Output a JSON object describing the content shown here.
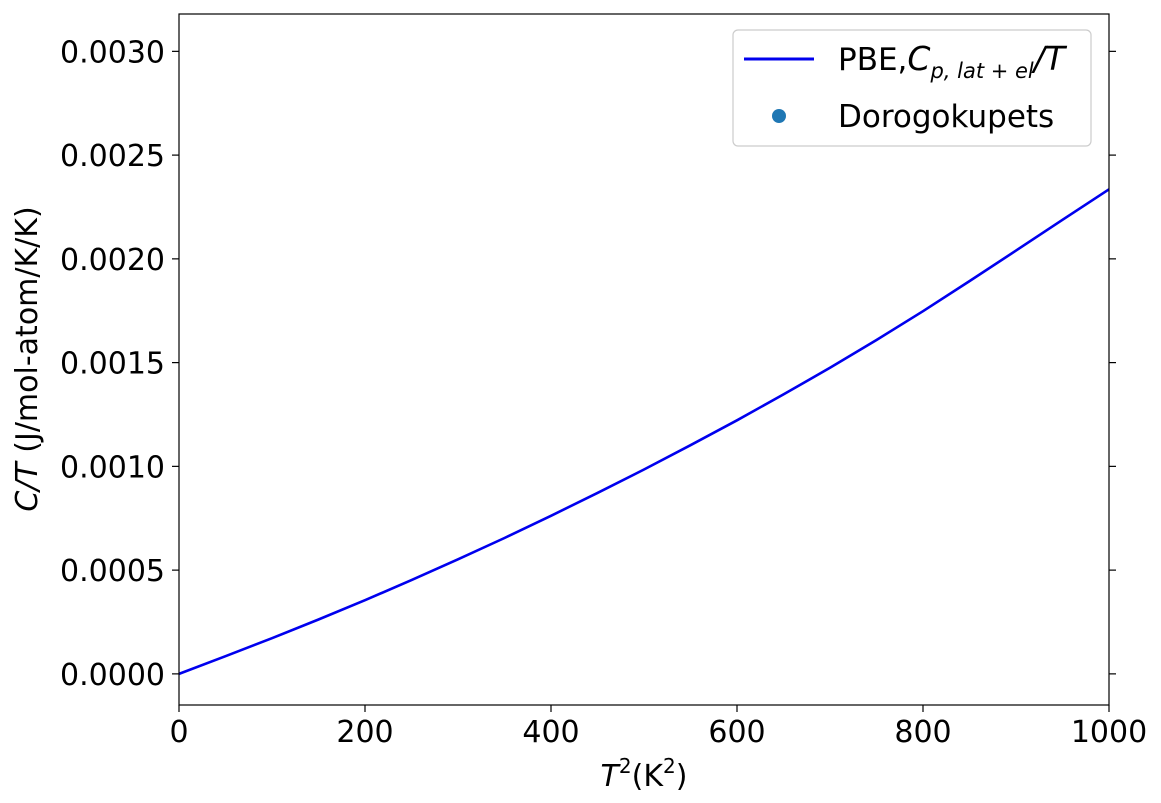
{
  "chart_data": {
    "type": "line",
    "xlabel": {
      "base": "T",
      "sup1": "2",
      "mid": "(K",
      "sup2": "2",
      "end": ")"
    },
    "ylabel": {
      "italic": "C/T",
      "rest": " (J/mol-atom/K/K)"
    },
    "xlim": [
      0,
      1000
    ],
    "ylim": [
      -0.00015,
      0.00318
    ],
    "xticks": [
      0,
      200,
      400,
      600,
      800,
      1000
    ],
    "xtick_labels": [
      "0",
      "200",
      "400",
      "600",
      "800",
      "1000"
    ],
    "yticks": [
      0.0,
      0.0005,
      0.001,
      0.0015,
      0.002,
      0.0025,
      0.003
    ],
    "ytick_labels": [
      "0.0000",
      "0.0005",
      "0.0010",
      "0.0015",
      "0.0020",
      "0.0025",
      "0.0030"
    ],
    "grid": false,
    "legend_position": "top-right",
    "series": [
      {
        "name": "PBE,C_{p,lat+el}/T",
        "name_parts": {
          "prefix": "PBE,",
          "c": "C",
          "sub": "p, lat + el",
          "suffix": "/T"
        },
        "style": "line",
        "color": "#0000ee",
        "x": [
          0,
          50,
          100,
          150,
          200,
          250,
          300,
          350,
          400,
          450,
          500,
          550,
          600,
          650,
          700,
          750,
          800,
          850,
          900,
          950,
          1000
        ],
        "y": [
          0.0,
          8.5e-05,
          0.000172,
          0.000262,
          0.000355,
          0.000452,
          0.000552,
          0.000655,
          0.000762,
          0.000872,
          0.000985,
          0.001102,
          0.001222,
          0.001347,
          0.001475,
          0.001609,
          0.001748,
          0.001893,
          0.00204,
          0.002188,
          0.002335
        ]
      },
      {
        "name": "Dorogokupets",
        "style": "marker",
        "color": "#1f77b4",
        "x": [],
        "y": []
      }
    ]
  }
}
